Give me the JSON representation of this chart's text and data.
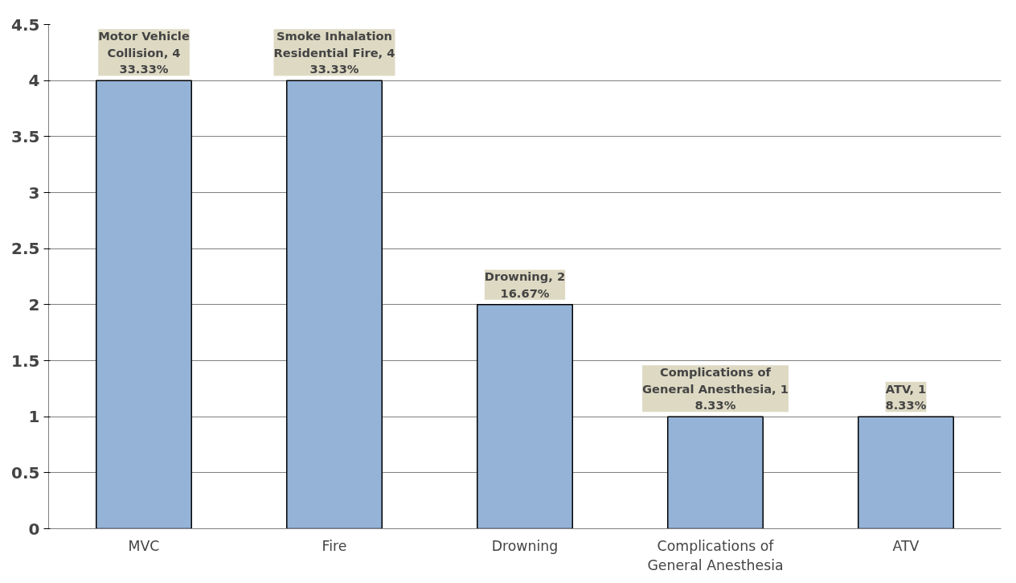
{
  "chart_data": {
    "type": "bar",
    "categories": [
      "MVC",
      "Fire",
      "Drowning",
      "Complications of General Anesthesia",
      "ATV"
    ],
    "values": [
      4,
      4,
      2,
      1,
      1
    ],
    "value_labels": [
      "Motor Vehicle\nCollision, 4\n33.33%",
      "Smoke Inhalation\nResidential Fire, 4\n33.33%",
      "Drowning, 2\n16.67%",
      "Complications of\nGeneral Anesthesia, 1\n8.33%",
      "ATV, 1\n8.33%"
    ],
    "color": "#95b3d7",
    "ylim": [
      0,
      4.5
    ],
    "yticks": [
      0,
      0.5,
      1,
      1.5,
      2,
      2.5,
      3,
      3.5,
      4,
      4.5
    ],
    "grid": "y"
  }
}
